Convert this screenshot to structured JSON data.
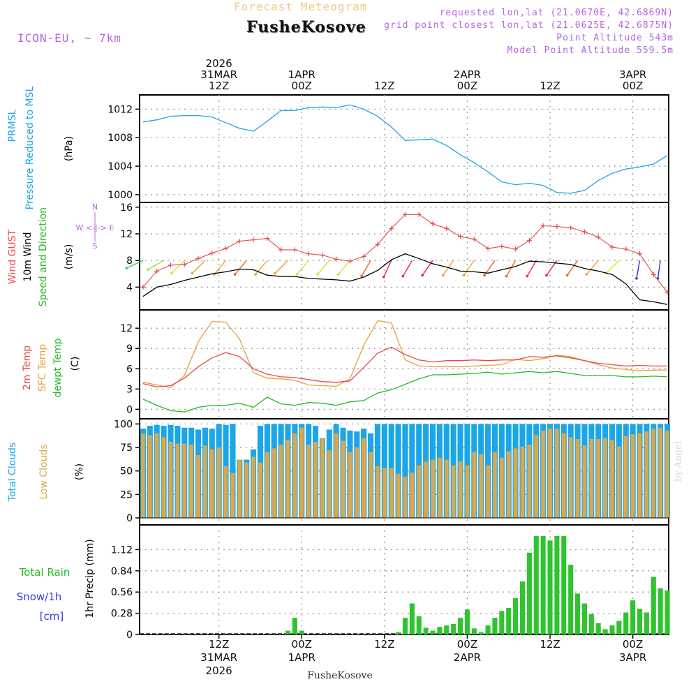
{
  "header": {
    "title": "Forecast Meteogram",
    "model": "ICON-EU, ~ 7km",
    "location": "FusheKosove",
    "requested": "requested lon,lat (21.0670E, 42.6869N)",
    "closest": "grid point closest lon,lat (21.0625E, 42.6875N)",
    "point_alt": "Point Altitude 543m",
    "model_alt": "Model Point Altitude 559.5m",
    "footer_location": "FusheKosove",
    "credit": "by Angel"
  },
  "time_axis": {
    "top_labels": [
      {
        "lines": [
          "2026",
          "31MAR",
          "12Z"
        ],
        "tick": true
      },
      {
        "lines": [
          "1APR",
          "00Z"
        ],
        "tick": true
      },
      {
        "lines": [
          "12Z"
        ],
        "tick": true
      },
      {
        "lines": [
          "2APR",
          "00Z"
        ],
        "tick": true
      },
      {
        "lines": [
          "12Z"
        ],
        "tick": true
      },
      {
        "lines": [
          "3APR",
          "00Z"
        ],
        "tick": true
      }
    ],
    "bottom_labels": [
      [
        "12Z",
        "31MAR",
        "2026"
      ],
      [
        "00Z",
        "1APR"
      ],
      [
        "12Z"
      ],
      [
        "00Z",
        "2APR"
      ],
      [
        "12Z"
      ],
      [
        "00Z",
        "3APR"
      ]
    ],
    "tick_hours": [
      12,
      24,
      36,
      48,
      60,
      72
    ],
    "hour_range": [
      0.5,
      77.2
    ],
    "start_note": "hour 0 = 2026-03-31 00Z"
  },
  "panels": {
    "pressure": {
      "labels": [
        "PRMSL",
        "Pressure Reduced to MSL"
      ],
      "unit": "(hPa)",
      "yticks": [
        1000,
        1004,
        1008,
        1012
      ],
      "ylim": [
        999.5,
        1013.8
      ],
      "color": "#1aa6e8"
    },
    "wind": {
      "labels": [
        "Wind GUST",
        "10m Wind",
        "Speed and Direction"
      ],
      "label_colors": [
        "#e84a4a",
        "#000000",
        "#22bb22"
      ],
      "unit": "(m/s)",
      "yticks": [
        4,
        8,
        12,
        16
      ],
      "ylim": [
        1.0,
        16.5
      ],
      "compass": [
        "N",
        "W <-|-> E",
        "S"
      ],
      "compass_color": "#b565e0"
    },
    "temp": {
      "labels": [
        "2m Temp",
        "SFC Temp",
        "dewpt Temp"
      ],
      "label_colors": [
        "#e84a4a",
        "#e8a23a",
        "#22bb22"
      ],
      "unit": "(C)",
      "yticks": [
        0,
        3,
        6,
        9,
        12
      ],
      "ylim": [
        -1.2,
        14.5
      ]
    },
    "clouds": {
      "labels": [
        "Total Clouds",
        "Low Clouds"
      ],
      "label_colors": [
        "#1aa6e8",
        "#d9a84e"
      ],
      "unit": "(%)",
      "yticks": [
        0,
        25,
        50,
        75,
        100
      ],
      "ylim": [
        0,
        104
      ]
    },
    "precip": {
      "labels": [
        "Total Rain",
        "Snow/1h",
        "[cm]"
      ],
      "label_colors": [
        "#22bb22",
        "#3a3ae0",
        "#3a3ae0"
      ],
      "unit": "1hr Precip (mm)",
      "yticks": [
        "0",
        "0.28",
        "0.56",
        "0.84",
        "1.12"
      ],
      "ylim": [
        0,
        1.4
      ]
    }
  },
  "chart_data": {
    "type": "meteogram",
    "title": "Forecast Meteogram",
    "hours_start": 1,
    "hours_end": 77,
    "pressure_hpa": {
      "hours": [
        1,
        3,
        5,
        7,
        9,
        11,
        13,
        15,
        17,
        19,
        21,
        23,
        25,
        27,
        29,
        31,
        33,
        35,
        37,
        39,
        41,
        43,
        45,
        47,
        49,
        51,
        53,
        55,
        57,
        59,
        61,
        63,
        65,
        67,
        69,
        71,
        73,
        75,
        77
      ],
      "values": [
        1010.2,
        1010.5,
        1011.0,
        1011.1,
        1011.1,
        1010.9,
        1010.1,
        1009.3,
        1008.9,
        1010.3,
        1011.8,
        1011.8,
        1012.2,
        1012.3,
        1012.2,
        1012.6,
        1012.0,
        1011.0,
        1009.5,
        1007.6,
        1007.7,
        1007.8,
        1006.9,
        1005.6,
        1004.5,
        1003.2,
        1001.8,
        1001.4,
        1001.6,
        1001.3,
        1000.3,
        1000.2,
        1000.6,
        1002.0,
        1003.0,
        1003.6,
        1003.9,
        1004.3,
        1005.5
      ]
    },
    "wind_gust_ms": {
      "hours": [
        1,
        3,
        5,
        7,
        9,
        11,
        13,
        15,
        17,
        19,
        21,
        23,
        25,
        27,
        29,
        31,
        33,
        35,
        37,
        39,
        41,
        43,
        45,
        47,
        49,
        51,
        53,
        55,
        57,
        59,
        61,
        63,
        65,
        67,
        69,
        71,
        73,
        75,
        77
      ],
      "values": [
        4.0,
        6.4,
        7.3,
        7.4,
        8.3,
        9.1,
        9.8,
        10.9,
        11.1,
        11.3,
        9.6,
        9.6,
        9.0,
        8.8,
        8.2,
        7.9,
        8.6,
        10.4,
        12.8,
        14.9,
        14.9,
        13.5,
        12.8,
        11.6,
        11.2,
        9.8,
        10.1,
        9.7,
        11.0,
        13.2,
        13.1,
        12.9,
        12.3,
        11.5,
        10.0,
        9.7,
        9.0,
        5.9,
        3.2
      ]
    },
    "wind_speed_ms": {
      "hours": [
        1,
        3,
        5,
        7,
        9,
        11,
        13,
        15,
        17,
        19,
        21,
        23,
        25,
        27,
        29,
        31,
        33,
        35,
        37,
        39,
        41,
        43,
        45,
        47,
        49,
        51,
        53,
        55,
        57,
        59,
        61,
        63,
        65,
        67,
        69,
        71,
        73,
        75,
        77
      ],
      "values": [
        2.6,
        4.0,
        4.4,
        5.0,
        5.5,
        6.0,
        6.3,
        6.7,
        6.6,
        5.8,
        5.6,
        5.6,
        5.3,
        5.2,
        5.1,
        4.9,
        5.5,
        6.5,
        8.1,
        9.0,
        8.3,
        7.5,
        7.0,
        6.4,
        6.3,
        6.1,
        6.6,
        7.1,
        7.9,
        7.8,
        7.6,
        7.4,
        6.8,
        6.4,
        5.9,
        4.5,
        2.1,
        1.8,
        1.4
      ]
    },
    "wind_direction": {
      "hours": [
        1,
        4,
        7,
        10,
        13,
        16,
        19,
        22,
        25,
        28,
        31,
        34,
        37,
        40,
        43,
        46,
        49,
        52,
        55,
        58,
        61,
        64,
        67,
        70,
        73,
        76
      ],
      "from_deg": [
        65,
        60,
        45,
        45,
        40,
        40,
        40,
        45,
        40,
        40,
        40,
        30,
        25,
        30,
        35,
        35,
        35,
        35,
        30,
        30,
        35,
        35,
        40,
        45,
        10,
        8
      ]
    },
    "temp_2m_c": {
      "hours": [
        1,
        3,
        5,
        7,
        9,
        11,
        13,
        15,
        17,
        19,
        21,
        23,
        25,
        27,
        29,
        31,
        33,
        35,
        37,
        39,
        41,
        43,
        45,
        47,
        49,
        51,
        53,
        55,
        57,
        59,
        61,
        63,
        65,
        67,
        69,
        71,
        73,
        75,
        77
      ],
      "values": [
        3.8,
        3.3,
        3.5,
        4.6,
        6.3,
        7.6,
        8.4,
        7.8,
        6.0,
        5.2,
        4.8,
        4.7,
        4.4,
        4.1,
        4.0,
        4.2,
        6.2,
        8.3,
        9.2,
        8.1,
        7.3,
        7.0,
        7.2,
        7.2,
        7.3,
        7.2,
        7.3,
        7.3,
        7.8,
        7.7,
        7.9,
        7.6,
        7.2,
        6.8,
        6.6,
        6.4,
        6.5,
        6.4,
        6.4
      ]
    },
    "temp_sfc_c": {
      "hours": [
        1,
        3,
        5,
        7,
        9,
        11,
        13,
        15,
        17,
        19,
        21,
        23,
        25,
        27,
        29,
        31,
        33,
        35,
        37,
        39,
        41,
        43,
        45,
        47,
        49,
        51,
        53,
        55,
        57,
        59,
        61,
        63,
        65,
        67,
        69,
        71,
        73,
        75,
        77
      ],
      "values": [
        4.0,
        3.6,
        3.2,
        5.0,
        10.0,
        13.0,
        12.9,
        10.4,
        5.4,
        4.6,
        4.5,
        4.3,
        3.6,
        3.5,
        3.4,
        4.5,
        9.5,
        13.1,
        12.8,
        7.3,
        6.4,
        6.3,
        6.3,
        6.3,
        6.4,
        6.5,
        6.6,
        7.4,
        7.2,
        7.5,
        8.0,
        7.8,
        7.2,
        6.6,
        6.1,
        5.9,
        5.7,
        5.8,
        5.8
      ]
    },
    "dewpoint_c": {
      "hours": [
        1,
        3,
        5,
        7,
        9,
        11,
        13,
        15,
        17,
        19,
        21,
        23,
        25,
        27,
        29,
        31,
        33,
        35,
        37,
        39,
        41,
        43,
        45,
        47,
        49,
        51,
        53,
        55,
        57,
        59,
        61,
        63,
        65,
        67,
        69,
        71,
        73,
        75,
        77
      ],
      "values": [
        1.5,
        0.6,
        -0.2,
        -0.4,
        0.3,
        0.6,
        0.6,
        0.9,
        0.3,
        1.8,
        0.8,
        0.6,
        1.0,
        0.9,
        0.6,
        1.1,
        1.3,
        2.4,
        2.9,
        3.7,
        4.5,
        5.1,
        5.1,
        5.2,
        5.3,
        5.5,
        5.2,
        5.4,
        5.6,
        5.4,
        5.6,
        5.3,
        5.0,
        5.0,
        5.0,
        4.8,
        4.8,
        4.9,
        4.8
      ]
    },
    "total_clouds_pct": {
      "hours": [
        1,
        2,
        3,
        4,
        5,
        6,
        7,
        8,
        9,
        10,
        11,
        12,
        13,
        14,
        15,
        16,
        17,
        18,
        19,
        20,
        21,
        22,
        23,
        24,
        25,
        26,
        27,
        28,
        29,
        30,
        31,
        32,
        33,
        34,
        35,
        36,
        37,
        38,
        39,
        40,
        41,
        42,
        43,
        44,
        45,
        46,
        47,
        48,
        49,
        50,
        51,
        52,
        53,
        54,
        55,
        56,
        57,
        58,
        59,
        60,
        61,
        62,
        63,
        64,
        65,
        66,
        67,
        68,
        69,
        70,
        71,
        72,
        73,
        74,
        75,
        76,
        77
      ],
      "values": [
        95,
        98,
        99,
        98,
        99,
        98,
        96,
        96,
        94,
        96,
        95,
        100,
        99,
        100,
        62,
        62,
        73,
        98,
        100,
        100,
        100,
        100,
        100,
        100,
        100,
        98,
        85,
        94,
        100,
        96,
        93,
        92,
        95,
        90,
        100,
        100,
        100,
        100,
        100,
        100,
        100,
        100,
        100,
        100,
        100,
        100,
        100,
        100,
        100,
        100,
        100,
        100,
        100,
        100,
        100,
        100,
        100,
        100,
        100,
        100,
        100,
        100,
        100,
        100,
        100,
        100,
        100,
        100,
        100,
        100,
        100,
        100,
        100,
        100,
        100,
        100,
        100
      ]
    },
    "low_clouds_pct": {
      "hours": [
        1,
        2,
        3,
        4,
        5,
        6,
        7,
        8,
        9,
        10,
        11,
        12,
        13,
        14,
        15,
        16,
        17,
        18,
        19,
        20,
        21,
        22,
        23,
        24,
        25,
        26,
        27,
        28,
        29,
        30,
        31,
        32,
        33,
        34,
        35,
        36,
        37,
        38,
        39,
        40,
        41,
        42,
        43,
        44,
        45,
        46,
        47,
        48,
        49,
        50,
        51,
        52,
        53,
        54,
        55,
        56,
        57,
        58,
        59,
        60,
        61,
        62,
        63,
        64,
        65,
        66,
        67,
        68,
        69,
        70,
        71,
        72,
        73,
        74,
        75,
        76,
        77
      ],
      "values": [
        90,
        88,
        90,
        86,
        81,
        79,
        79,
        78,
        67,
        77,
        73,
        75,
        55,
        48,
        62,
        59,
        65,
        59,
        70,
        74,
        78,
        83,
        90,
        96,
        78,
        81,
        85,
        72,
        90,
        82,
        70,
        75,
        85,
        70,
        55,
        53,
        53,
        47,
        44,
        48,
        56,
        60,
        62,
        64,
        62,
        56,
        60,
        56,
        70,
        68,
        56,
        70,
        64,
        71,
        74,
        76,
        78,
        88,
        93,
        95,
        95,
        90,
        86,
        84,
        77,
        84,
        84,
        85,
        83,
        76,
        87,
        89,
        90,
        92,
        95,
        96,
        93
      ]
    },
    "precip_mm": {
      "hours": [
        22,
        23,
        24,
        38,
        39,
        40,
        41,
        42,
        43,
        44,
        45,
        46,
        47,
        48,
        49,
        50,
        51,
        52,
        53,
        54,
        55,
        56,
        57,
        58,
        59,
        60,
        61,
        62,
        63,
        64,
        65,
        66,
        67,
        68,
        69,
        70,
        71,
        72,
        73,
        74,
        75,
        76,
        77
      ],
      "values": [
        0.05,
        0.22,
        0.05,
        0.03,
        0.22,
        0.41,
        0.24,
        0.09,
        0.05,
        0.1,
        0.12,
        0.14,
        0.22,
        0.33,
        0.08,
        0.03,
        0.12,
        0.22,
        0.31,
        0.35,
        0.48,
        0.7,
        1.08,
        1.3,
        1.3,
        1.24,
        1.3,
        1.3,
        0.92,
        0.54,
        0.41,
        0.27,
        0.15,
        0.07,
        0.12,
        0.18,
        0.29,
        0.45,
        0.34,
        0.29,
        0.76,
        0.61,
        0.58
      ]
    }
  }
}
